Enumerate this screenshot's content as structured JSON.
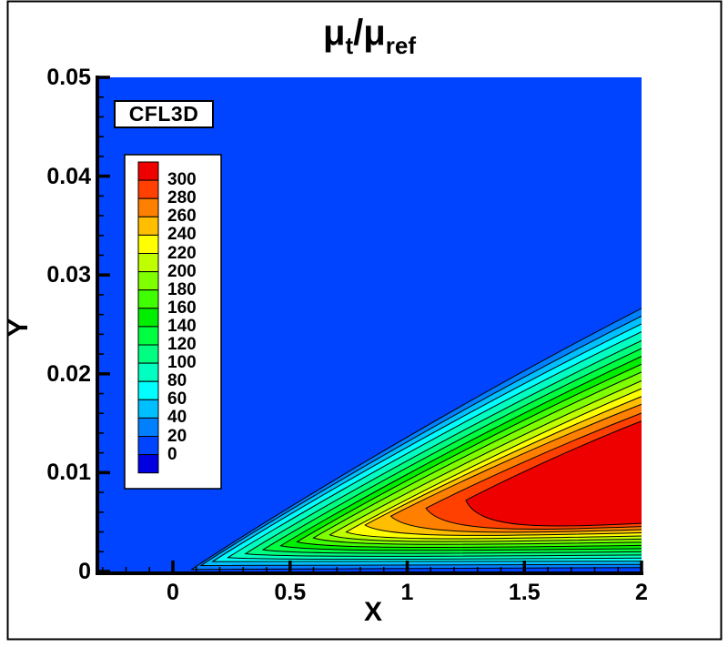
{
  "chart_data": {
    "type": "contour",
    "title": {
      "mu": "μ",
      "sub_t": "t",
      "slash": "/",
      "sub_ref": "ref"
    },
    "annotation": "CFL3D",
    "xlabel": "X",
    "ylabel": "Y",
    "x_range": [
      -0.322,
      2.0
    ],
    "y_range": [
      0.0,
      0.05
    ],
    "x_ticks": [
      {
        "v": 0,
        "label": "0"
      },
      {
        "v": 0.5,
        "label": "0.5"
      },
      {
        "v": 1,
        "label": "1"
      },
      {
        "v": 1.5,
        "label": "1.5"
      },
      {
        "v": 2,
        "label": "2"
      }
    ],
    "y_ticks": [
      {
        "v": 0,
        "label": "0"
      },
      {
        "v": 0.01,
        "label": "0.01"
      },
      {
        "v": 0.02,
        "label": "0.02"
      },
      {
        "v": 0.03,
        "label": "0.03"
      },
      {
        "v": 0.04,
        "label": "0.04"
      },
      {
        "v": 0.05,
        "label": "0.05"
      }
    ],
    "x_minor_step": 0.1,
    "y_minor_step": 0.002,
    "levels": [
      0,
      20,
      40,
      60,
      80,
      100,
      120,
      140,
      160,
      180,
      200,
      220,
      240,
      260,
      280,
      300
    ],
    "legend_labels": [
      "300",
      "280",
      "260",
      "240",
      "220",
      "200",
      "180",
      "160",
      "140",
      "120",
      "100",
      "80",
      "60",
      "40",
      "20",
      "0"
    ],
    "band_colors": [
      "#0000E0",
      "#0044FF",
      "#0080FF",
      "#00BFFF",
      "#00FFFF",
      "#00FFC0",
      "#00FF80",
      "#00FF40",
      "#00EE00",
      "#40FF00",
      "#80FF00",
      "#BFFF00",
      "#FFFF00",
      "#FFBF00",
      "#FF8000",
      "#FF4000",
      "#EF0000"
    ],
    "contours": [
      {
        "level": 20,
        "nose": [
          0.08,
          0.0002
        ],
        "y_right_upper": 0.027,
        "y_right_lower": 0.0004
      },
      {
        "level": 40,
        "nose": [
          0.12,
          0.0006
        ],
        "y_right_upper": 0.0262,
        "y_right_lower": 0.00072
      },
      {
        "level": 60,
        "nose": [
          0.17,
          0.001
        ],
        "y_right_upper": 0.0254,
        "y_right_lower": 0.00104
      },
      {
        "level": 80,
        "nose": [
          0.235,
          0.0014
        ],
        "y_right_upper": 0.0246,
        "y_right_lower": 0.00136
      },
      {
        "level": 100,
        "nose": [
          0.31,
          0.0018
        ],
        "y_right_upper": 0.0237,
        "y_right_lower": 0.00168
      },
      {
        "level": 120,
        "nose": [
          0.385,
          0.0022
        ],
        "y_right_upper": 0.0229,
        "y_right_lower": 0.002
      },
      {
        "level": 140,
        "nose": [
          0.46,
          0.0026
        ],
        "y_right_upper": 0.0221,
        "y_right_lower": 0.00232
      },
      {
        "level": 160,
        "nose": [
          0.53,
          0.003
        ],
        "y_right_upper": 0.0213,
        "y_right_lower": 0.00264
      },
      {
        "level": 180,
        "nose": [
          0.6,
          0.0034
        ],
        "y_right_upper": 0.0205,
        "y_right_lower": 0.00297
      },
      {
        "level": 200,
        "nose": [
          0.67,
          0.0037
        ],
        "y_right_upper": 0.0196,
        "y_right_lower": 0.00329
      },
      {
        "level": 220,
        "nose": [
          0.74,
          0.004
        ],
        "y_right_upper": 0.0188,
        "y_right_lower": 0.00361
      },
      {
        "level": 240,
        "nose": [
          0.82,
          0.0047
        ],
        "y_right_upper": 0.018,
        "y_right_lower": 0.00393
      },
      {
        "level": 260,
        "nose": [
          0.93,
          0.0056
        ],
        "y_right_upper": 0.0172,
        "y_right_lower": 0.00425
      },
      {
        "level": 280,
        "nose": [
          1.08,
          0.0064
        ],
        "y_right_upper": 0.0163,
        "y_right_lower": 0.00457
      },
      {
        "level": 300,
        "nose": [
          1.25,
          0.0072
        ],
        "y_right_upper": 0.0155,
        "y_right_lower": 0.0049
      }
    ]
  }
}
